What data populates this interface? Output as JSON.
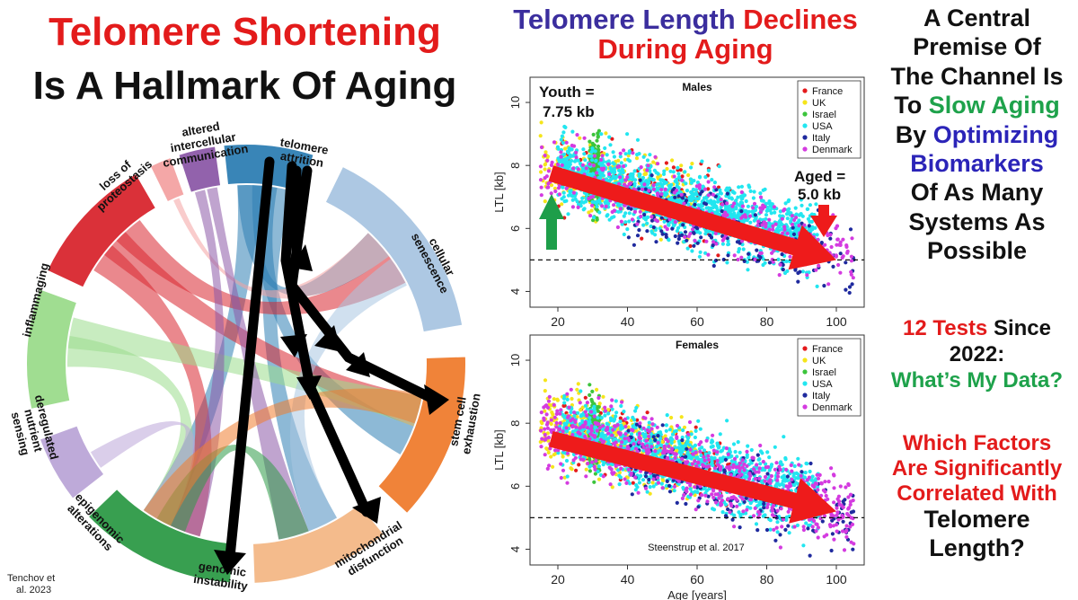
{
  "left": {
    "title_line1": "Telomere Shortening",
    "title_line2": "Is A Hallmark Of Aging",
    "credit_line1": "Tenchov et",
    "credit_line2": "al. 2023",
    "hallmarks": [
      {
        "label": "telomere attrition",
        "color": "#2f7fb4"
      },
      {
        "label": "cellular senescence",
        "color": "#a9c6e2"
      },
      {
        "label": "stem cell exhaustion",
        "color": "#f07d2f"
      },
      {
        "label": "mitochondrial disfunction",
        "color": "#f4b886"
      },
      {
        "label": "genomic instability",
        "color": "#2e9a47"
      },
      {
        "label": "epigenomic alterations",
        "color": "#bba6d8"
      },
      {
        "label": "deregulated nutrient sensing",
        "color": "#9bdc8c"
      },
      {
        "label": "inflammaging",
        "color": "#d9262f"
      },
      {
        "label": "loss of proteostasis",
        "color": "#f4a3a3"
      },
      {
        "label": "altered intercellular communication",
        "color": "#8d5aa8"
      }
    ]
  },
  "middle": {
    "title_part1": "Telomere Length ",
    "title_part2": "Declines",
    "title_line2": "During Aging",
    "youth_label_1": "Youth =",
    "youth_label_2": "7.75 kb",
    "aged_label_1": "Aged =",
    "aged_label_2": "5.0 kb",
    "source": "Steenstrup et al. 2017"
  },
  "right": {
    "line1": "A Central",
    "line2": "Premise Of",
    "line3": "The Channel Is",
    "line4_a": "To ",
    "line4_b": "Slow Aging",
    "line5_a": "By ",
    "line5_b": "Optimizing",
    "line6": "Biomarkers",
    "line7": "Of As Many",
    "line8": "Systems As",
    "line9": "Possible",
    "tests_a": "12 Tests",
    "tests_b": " Since",
    "tests_line2": "2022:",
    "tests_line3": "What’s My Data?",
    "factors_line1": "Which Factors",
    "factors_line2": "Are Significantly",
    "factors_line3": "Correlated With",
    "factors_line4": "Telomere",
    "factors_line5": "Length?"
  },
  "chart_data": [
    {
      "type": "scatter",
      "title": "Males",
      "xlabel": "",
      "ylabel": "LTL [kb]",
      "xlim": [
        12,
        108
      ],
      "ylim": [
        3.5,
        10.8
      ],
      "xticks": [
        20,
        40,
        60,
        80,
        100
      ],
      "yticks": [
        4,
        6,
        8,
        10
      ],
      "reference_line_y": 5.0,
      "trend": {
        "from": [
          18,
          7.75
        ],
        "to": [
          100,
          5.0
        ]
      },
      "legend": [
        "France",
        "UK",
        "Israel",
        "USA",
        "Italy",
        "Denmark"
      ],
      "legend_colors": [
        "#e41a1c",
        "#f5e51b",
        "#3cc43c",
        "#22e6f0",
        "#1f2a9e",
        "#d43be0"
      ],
      "point_counts": [
        120,
        260,
        220,
        1500,
        200,
        380
      ]
    },
    {
      "type": "scatter",
      "title": "Females",
      "xlabel": "Age [years]",
      "ylabel": "LTL [kb]",
      "xlim": [
        12,
        108
      ],
      "ylim": [
        3.5,
        10.8
      ],
      "xticks": [
        20,
        40,
        60,
        80,
        100
      ],
      "yticks": [
        4,
        6,
        8,
        10
      ],
      "reference_line_y": 5.0,
      "trend": {
        "from": [
          18,
          7.5
        ],
        "to": [
          100,
          5.2
        ]
      },
      "legend": [
        "France",
        "UK",
        "Israel",
        "USA",
        "Italy",
        "Denmark"
      ],
      "legend_colors": [
        "#e41a1c",
        "#f5e51b",
        "#3cc43c",
        "#22e6f0",
        "#1f2a9e",
        "#d43be0"
      ],
      "point_counts": [
        140,
        480,
        220,
        1200,
        220,
        720
      ]
    }
  ]
}
